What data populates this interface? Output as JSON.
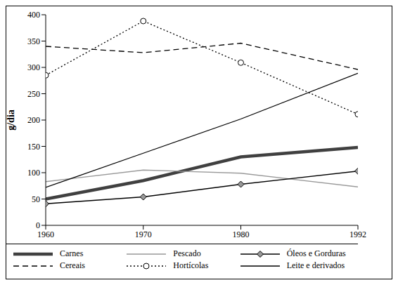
{
  "chart_data": {
    "type": "line",
    "y_label": "g/dia",
    "x": [
      1960,
      1970,
      1980,
      1992
    ],
    "xlim": [
      1960,
      1992
    ],
    "xticks": [
      1960,
      1970,
      1980,
      1992
    ],
    "ylim": [
      0,
      400
    ],
    "yticks": [
      0,
      50,
      100,
      150,
      200,
      250,
      300,
      350,
      400
    ],
    "grid": false,
    "legend": "bottom",
    "series": [
      {
        "name": "Carnes",
        "color": "#404040",
        "line_style": "thick",
        "values": [
          50,
          85,
          130,
          148
        ]
      },
      {
        "name": "Pescado",
        "color": "#999999",
        "line_style": "solid",
        "values": [
          83,
          105,
          99,
          73
        ]
      },
      {
        "name": "Óleos e Gorduras",
        "color": "#000000",
        "line_style": "solid",
        "marker": "diamond",
        "values": [
          41,
          54,
          78,
          103
        ]
      },
      {
        "name": "Cereais",
        "color": "#000000",
        "line_style": "dashed",
        "values": [
          340,
          328,
          346,
          296
        ]
      },
      {
        "name": "Hortícolas",
        "color": "#000000",
        "line_style": "dotted",
        "marker": "circle",
        "values": [
          285,
          388,
          309,
          211
        ]
      },
      {
        "name": "Leite e derivados",
        "color": "#000000",
        "line_style": "solid",
        "values": [
          72,
          137,
          202,
          289
        ]
      }
    ]
  }
}
